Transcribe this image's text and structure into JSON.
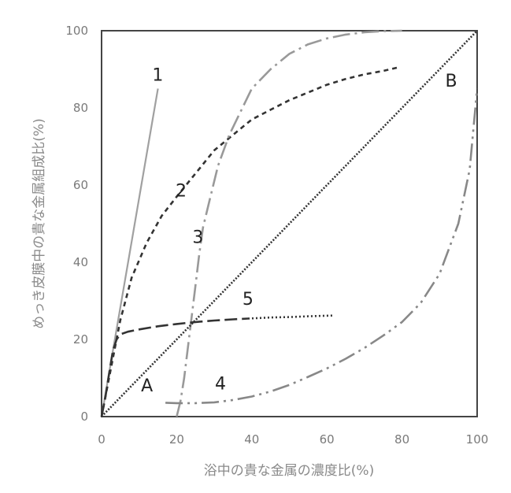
{
  "chart_data": {
    "type": "line",
    "xlabel": "浴中の貴な金属の濃度比(%)",
    "ylabel": "めっき皮膜中の貴な金属組成比(%)",
    "xlim": [
      0,
      100
    ],
    "ylim": [
      0,
      100
    ],
    "xticks": [
      "0",
      "20",
      "40",
      "60",
      "80",
      "100"
    ],
    "yticks": [
      "0",
      "20",
      "40",
      "60",
      "80",
      "100"
    ],
    "grid": false,
    "series": [
      {
        "name": "1",
        "color": "#a0a0a0",
        "dash": "solid",
        "points": [
          [
            0,
            0
          ],
          [
            15,
            85
          ]
        ]
      },
      {
        "name": "2",
        "color": "#333333",
        "dash": "6 5",
        "points": [
          [
            0,
            0
          ],
          [
            2,
            10
          ],
          [
            5,
            25
          ],
          [
            8,
            36
          ],
          [
            12,
            45
          ],
          [
            16,
            52
          ],
          [
            20,
            57
          ],
          [
            25,
            63
          ],
          [
            30,
            69
          ],
          [
            35,
            73
          ],
          [
            40,
            77
          ],
          [
            45,
            79.5
          ],
          [
            50,
            82
          ],
          [
            55,
            84
          ],
          [
            60,
            86
          ],
          [
            65,
            87.5
          ],
          [
            70,
            88.7
          ],
          [
            75,
            89.6
          ],
          [
            79,
            90.5
          ]
        ]
      },
      {
        "name": "3",
        "color": "#999999",
        "dash": "22 6 3 6",
        "points": [
          [
            20,
            0
          ],
          [
            21,
            4
          ],
          [
            22,
            10
          ],
          [
            23,
            18
          ],
          [
            24,
            26
          ],
          [
            25,
            34
          ],
          [
            26,
            42
          ],
          [
            27,
            49
          ],
          [
            29,
            57
          ],
          [
            31,
            65
          ],
          [
            34,
            73
          ],
          [
            37,
            79
          ],
          [
            40,
            85
          ],
          [
            45,
            90
          ],
          [
            50,
            94
          ],
          [
            55,
            96.5
          ],
          [
            60,
            98
          ],
          [
            65,
            99
          ],
          [
            70,
            99.6
          ],
          [
            75,
            99.9
          ],
          [
            80,
            100
          ]
        ]
      },
      {
        "name": "4",
        "color": "#888888",
        "dash": "22 6 3 6 3 6",
        "points": [
          [
            17,
            3.6
          ],
          [
            20,
            3.5
          ],
          [
            25,
            3.5
          ],
          [
            30,
            3.7
          ],
          [
            35,
            4.3
          ],
          [
            40,
            5.2
          ],
          [
            45,
            6.5
          ],
          [
            50,
            8.2
          ],
          [
            55,
            10.3
          ],
          [
            60,
            12.5
          ],
          [
            65,
            15
          ],
          [
            70,
            17.8
          ],
          [
            75,
            21
          ],
          [
            80,
            24.5
          ],
          [
            85,
            29.5
          ],
          [
            90,
            37
          ],
          [
            95,
            50
          ],
          [
            98,
            64
          ],
          [
            100,
            85
          ]
        ]
      },
      {
        "name": "5",
        "color": "#333333",
        "dash": "16 6",
        "points": [
          [
            0,
            0
          ],
          [
            1,
            5
          ],
          [
            2,
            11
          ],
          [
            3,
            17
          ],
          [
            4,
            20
          ],
          [
            5,
            21.3
          ],
          [
            7,
            22
          ],
          [
            10,
            22.6
          ],
          [
            15,
            23.4
          ],
          [
            20,
            24
          ],
          [
            25,
            24.5
          ],
          [
            30,
            24.9
          ],
          [
            35,
            25.2
          ],
          [
            39,
            25.4
          ]
        ]
      },
      {
        "name": "5",
        "color": "#333333",
        "dash": "2 3",
        "points": [
          [
            39,
            25.4
          ],
          [
            45,
            25.7
          ],
          [
            50,
            25.8
          ],
          [
            55,
            26
          ],
          [
            62,
            26.2
          ]
        ]
      },
      {
        "name": "B",
        "color": "#333333",
        "dash": "2 2",
        "points": [
          [
            0,
            0
          ],
          [
            100,
            100
          ]
        ]
      }
    ],
    "annotations": [
      {
        "text": "1",
        "x": 13.5,
        "y": 87
      },
      {
        "text": "2",
        "x": 19.7,
        "y": 57
      },
      {
        "text": "3",
        "x": 24.2,
        "y": 45
      },
      {
        "text": "4",
        "x": 30.2,
        "y": 7
      },
      {
        "text": "5",
        "x": 37.5,
        "y": 29
      },
      {
        "text": "A",
        "x": 10.5,
        "y": 6.5
      },
      {
        "text": "B",
        "x": 91.5,
        "y": 85.5
      }
    ]
  }
}
